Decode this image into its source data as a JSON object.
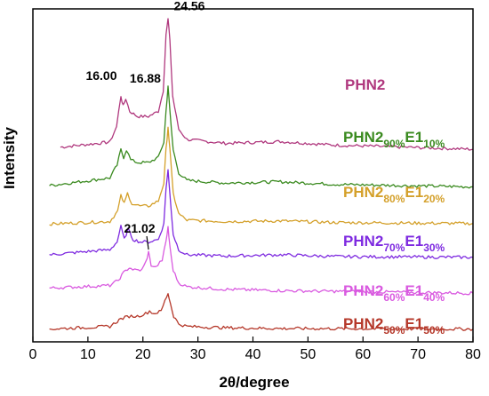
{
  "chart_data": {
    "type": "line",
    "xlabel": "2θ/degree",
    "ylabel": "Intensity",
    "xlim": [
      0,
      80
    ],
    "x_ticks": [
      "0",
      "10",
      "20",
      "30",
      "40",
      "50",
      "60",
      "70",
      "80"
    ],
    "grid": false,
    "legend": "labels on right",
    "series": [
      {
        "name": "PHN2",
        "color": "#b0387e",
        "label": {
          "main": "PHN2",
          "parts": []
        },
        "x": [
          5,
          14,
          15.2,
          16.0,
          16.4,
          16.88,
          17.6,
          19,
          21,
          22.8,
          23.7,
          24.2,
          24.56,
          24.9,
          25.4,
          26.5,
          28,
          35,
          45,
          55,
          80
        ],
        "y": [
          0.56,
          0.58,
          0.64,
          0.76,
          0.72,
          0.75,
          0.7,
          0.68,
          0.68,
          0.7,
          0.78,
          1.0,
          1.06,
          0.98,
          0.76,
          0.63,
          0.59,
          0.575,
          0.582,
          0.568,
          0.552
        ]
      },
      {
        "name": "PHN2 90% E1 10%",
        "color": "#3a8a1f",
        "label": {
          "main": "PHN2",
          "parts": [
            [
              "90%",
              "E1"
            ],
            [
              "10%",
              ""
            ]
          ]
        },
        "x": [
          3,
          14,
          15.3,
          16.0,
          16.5,
          17.0,
          17.8,
          19,
          21,
          22.8,
          23.8,
          24.2,
          24.56,
          24.9,
          25.5,
          26.5,
          28,
          35,
          45,
          55,
          80
        ],
        "y": [
          0.41,
          0.44,
          0.49,
          0.55,
          0.52,
          0.55,
          0.51,
          0.5,
          0.5,
          0.52,
          0.58,
          0.7,
          0.8,
          0.7,
          0.55,
          0.46,
          0.43,
          0.42,
          0.425,
          0.415,
          0.405
        ]
      },
      {
        "name": "PHN2 80% E1 20%",
        "color": "#d4a02a",
        "label": {
          "main": "PHN2",
          "parts": [
            [
              "80%",
              "E1"
            ],
            [
              "20%",
              ""
            ]
          ]
        },
        "x": [
          3,
          14,
          15.4,
          16.0,
          16.6,
          17.2,
          18.0,
          19.5,
          21,
          22.8,
          23.8,
          24.2,
          24.56,
          24.9,
          25.5,
          26.5,
          28,
          35,
          45,
          55,
          80
        ],
        "y": [
          0.26,
          0.27,
          0.31,
          0.37,
          0.34,
          0.38,
          0.34,
          0.33,
          0.33,
          0.35,
          0.42,
          0.55,
          0.64,
          0.55,
          0.38,
          0.3,
          0.275,
          0.27,
          0.272,
          0.266,
          0.262
        ]
      },
      {
        "name": "PHN2 70% E1 30%",
        "color": "#7e2ae0",
        "label": {
          "main": "PHN2",
          "parts": [
            [
              "70%",
              "E1"
            ],
            [
              "30%",
              ""
            ]
          ]
        },
        "x": [
          3,
          14,
          15.3,
          16.0,
          16.6,
          17.3,
          18.2,
          19.5,
          21,
          22.8,
          23.8,
          24.2,
          24.56,
          24.9,
          25.5,
          26.5,
          28,
          35,
          45,
          55,
          80
        ],
        "y": [
          0.14,
          0.16,
          0.19,
          0.25,
          0.2,
          0.24,
          0.2,
          0.19,
          0.19,
          0.2,
          0.26,
          0.4,
          0.47,
          0.38,
          0.22,
          0.16,
          0.14,
          0.135,
          0.14,
          0.133,
          0.13
        ]
      },
      {
        "name": "PHN2 60% E1 40%",
        "color": "#d95ae0",
        "label": {
          "main": "PHN2",
          "parts": [
            [
              "60%",
              "E1"
            ],
            [
              "40%",
              ""
            ]
          ]
        },
        "x": [
          3,
          14,
          15.5,
          16.5,
          17.5,
          18.5,
          19.8,
          20.5,
          21.02,
          21.5,
          22.3,
          23.5,
          24.2,
          24.56,
          24.9,
          25.5,
          26.5,
          28,
          35,
          45,
          80
        ],
        "y": [
          0.01,
          0.02,
          0.04,
          0.07,
          0.09,
          0.08,
          0.08,
          0.11,
          0.15,
          0.1,
          0.09,
          0.12,
          0.19,
          0.25,
          0.17,
          0.08,
          0.03,
          0.015,
          0.005,
          0.0,
          -0.01
        ]
      },
      {
        "name": "PHN2 50% E1 50%",
        "color": "#b5382a",
        "label": {
          "main": "PHN2",
          "parts": [
            [
              "50%",
              "E1"
            ],
            [
              "50%",
              ""
            ]
          ]
        },
        "x": [
          3,
          14,
          16,
          17.5,
          19,
          20.5,
          21.2,
          22,
          23.3,
          24.0,
          24.56,
          25.0,
          25.6,
          26.5,
          28,
          35,
          45,
          80
        ],
        "y": [
          -0.15,
          -0.14,
          -0.11,
          -0.1,
          -0.1,
          -0.09,
          -0.08,
          -0.09,
          -0.08,
          -0.04,
          -0.01,
          -0.05,
          -0.1,
          -0.13,
          -0.14,
          -0.145,
          -0.148,
          -0.15
        ]
      }
    ],
    "annotations": [
      {
        "text": "16.00",
        "x": 16.0,
        "series": 0
      },
      {
        "text": "16.88",
        "x": 16.88,
        "series": 0
      },
      {
        "text": "24.56",
        "x": 24.56,
        "series": 0
      },
      {
        "text": "21.02",
        "x": 21.02,
        "series": 4
      }
    ]
  }
}
